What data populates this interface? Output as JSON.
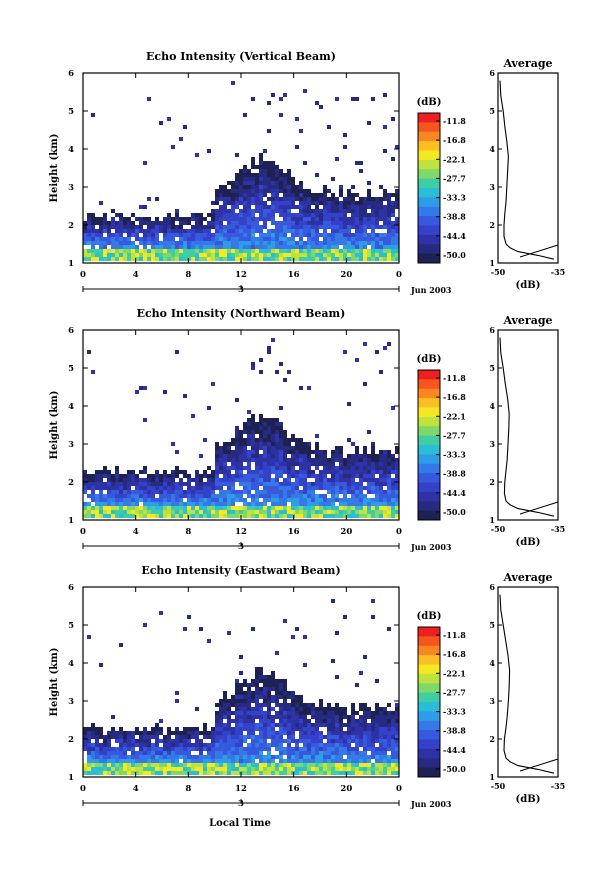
{
  "figure": {
    "local_time_label": "Local Time"
  },
  "colorbar": {
    "unit": "(dB)",
    "ticks": [
      "-11.8",
      "-16.8",
      "-22.1",
      "-27.7",
      "-33.3",
      "-38.8",
      "-44.4",
      "-50.0"
    ],
    "colors": [
      "#ee1f1f",
      "#f4561d",
      "#f88721",
      "#fbbf23",
      "#f3e923",
      "#bfe23d",
      "#7fd86a",
      "#3fcda3",
      "#2bbdd6",
      "#2f9ce8",
      "#3579e6",
      "#3659dd",
      "#3441c9",
      "#2d32a6",
      "#262a80",
      "#1e2252"
    ]
  },
  "chart_data": [
    {
      "type": "heatmap",
      "title": "Echo Intensity (Vertical Beam)",
      "xlabel": "",
      "ylabel": "Height (km)",
      "xlim": [
        0,
        24
      ],
      "ylim": [
        1,
        6
      ],
      "x_ticks": [
        "0",
        "4",
        "8",
        "12",
        "16",
        "20",
        "0"
      ],
      "y_ticks": [
        "1",
        "2",
        "3",
        "4",
        "5",
        "6"
      ],
      "date_tick": "3",
      "date_label": "Jun 2003",
      "colorbar_label": "(dB)",
      "colorbar_ticks": [
        -11.8,
        -16.8,
        -22.1,
        -27.7,
        -33.3,
        -38.8,
        -44.4,
        -50.0
      ],
      "profile": {
        "title": "Average",
        "xlabel": "(dB)",
        "x_ticks": [
          "-50",
          "-35"
        ],
        "xlim": [
          -50,
          -35
        ],
        "y_ticks": [
          "1",
          "2",
          "3",
          "4",
          "5",
          "6"
        ],
        "height": [
          1.1,
          1.2,
          1.3,
          1.4,
          1.5,
          1.7,
          2.0,
          2.3,
          2.6,
          3.0,
          3.4,
          3.8,
          4.2,
          4.6,
          5.0,
          5.4,
          5.8
        ],
        "value": [
          -36,
          -40,
          -45,
          -47,
          -48,
          -48.5,
          -48.5,
          -48.3,
          -48,
          -47.8,
          -47.6,
          -47.4,
          -47.8,
          -48.3,
          -48.7,
          -49.3,
          -49.5
        ]
      }
    },
    {
      "type": "heatmap",
      "title": "Echo Intensity (Northward Beam)",
      "xlabel": "",
      "ylabel": "Height (km)",
      "xlim": [
        0,
        24
      ],
      "ylim": [
        1,
        6
      ],
      "x_ticks": [
        "0",
        "4",
        "8",
        "12",
        "16",
        "20",
        "0"
      ],
      "y_ticks": [
        "1",
        "2",
        "3",
        "4",
        "5",
        "6"
      ],
      "date_tick": "3",
      "date_label": "Jun 2003",
      "colorbar_label": "(dB)",
      "colorbar_ticks": [
        -11.8,
        -16.8,
        -22.1,
        -27.7,
        -33.3,
        -38.8,
        -44.4,
        -50.0
      ],
      "profile": {
        "title": "Average",
        "xlabel": "(dB)",
        "x_ticks": [
          "-50",
          "-35"
        ],
        "xlim": [
          -50,
          -35
        ],
        "y_ticks": [
          "1",
          "2",
          "3",
          "4",
          "5",
          "6"
        ],
        "height": [
          1.1,
          1.2,
          1.3,
          1.4,
          1.5,
          1.7,
          2.0,
          2.3,
          2.6,
          3.0,
          3.4,
          3.8,
          4.2,
          4.6,
          5.0,
          5.4,
          5.8
        ],
        "value": [
          -36,
          -40,
          -45,
          -47,
          -48,
          -48.4,
          -48.3,
          -48,
          -47.7,
          -47.5,
          -47.3,
          -47.2,
          -47.6,
          -48.2,
          -48.7,
          -49.3,
          -49.5
        ]
      }
    },
    {
      "type": "heatmap",
      "title": "Echo Intensity (Eastward Beam)",
      "xlabel": "Local Time",
      "ylabel": "Height (km)",
      "xlim": [
        0,
        24
      ],
      "ylim": [
        1,
        6
      ],
      "x_ticks": [
        "0",
        "4",
        "8",
        "12",
        "16",
        "20",
        "0"
      ],
      "y_ticks": [
        "1",
        "2",
        "3",
        "4",
        "5",
        "6"
      ],
      "date_tick": "3",
      "date_label": "Jun 2003",
      "colorbar_label": "(dB)",
      "colorbar_ticks": [
        -11.8,
        -16.8,
        -22.1,
        -27.7,
        -33.3,
        -38.8,
        -44.4,
        -50.0
      ],
      "profile": {
        "title": "Average",
        "xlabel": "(dB)",
        "x_ticks": [
          "-50",
          "-35"
        ],
        "xlim": [
          -50,
          -35
        ],
        "y_ticks": [
          "1",
          "2",
          "3",
          "4",
          "5",
          "6"
        ],
        "height": [
          1.1,
          1.2,
          1.3,
          1.4,
          1.5,
          1.7,
          2.0,
          2.3,
          2.6,
          3.0,
          3.4,
          3.8,
          4.2,
          4.6,
          5.0,
          5.4,
          5.8
        ],
        "value": [
          -36,
          -40,
          -45,
          -47,
          -48,
          -48.5,
          -48.4,
          -48,
          -47.7,
          -47.4,
          -47.2,
          -47.1,
          -47.5,
          -48.1,
          -48.7,
          -49.3,
          -49.5
        ]
      }
    }
  ]
}
